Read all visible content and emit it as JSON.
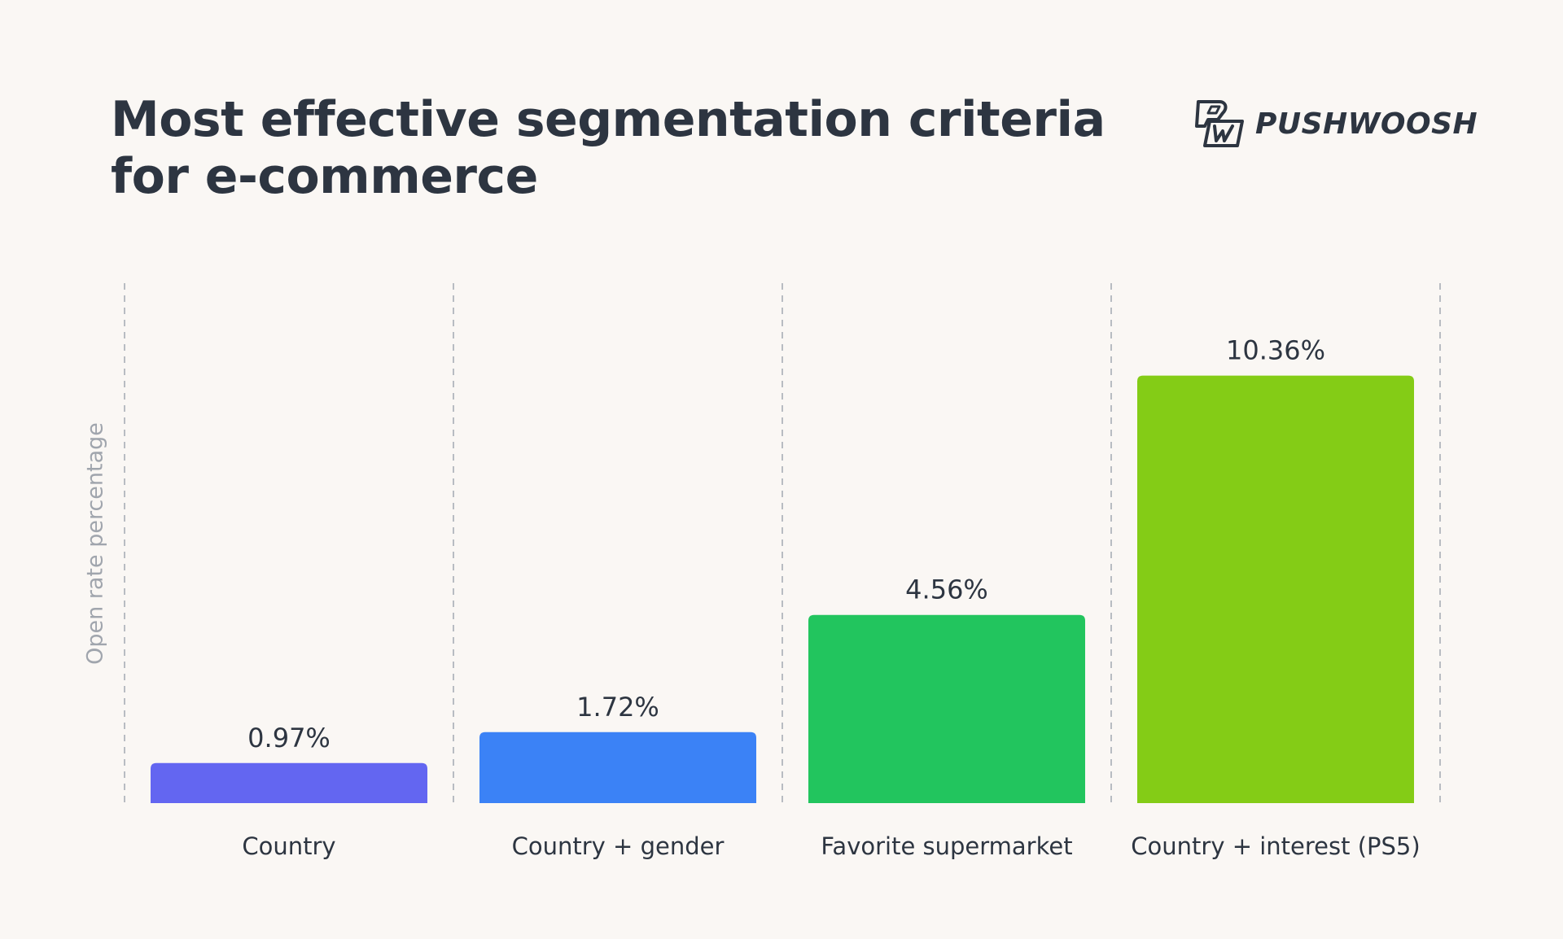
{
  "chart_data": {
    "type": "bar",
    "title_lines": [
      "Most effective segmentation criteria",
      "for e-commerce"
    ],
    "ylabel": "Open rate percentage",
    "xlabel": "",
    "categories": [
      "Country",
      "Country + gender",
      "Favorite supermarket",
      "Country + interest (PS5)"
    ],
    "values": [
      0.97,
      1.72,
      4.56,
      10.36
    ],
    "value_labels": [
      "0.97%",
      "1.72%",
      "4.56%",
      "10.36%"
    ],
    "bar_colors": [
      "#6366f1",
      "#3b82f6",
      "#22c55e",
      "#84cc16"
    ],
    "ylim": [
      0,
      12.6
    ],
    "grid": "vertical dashed separators",
    "legend": "none"
  },
  "brand": {
    "name": "PUSHWOOSH",
    "logo_icon": "pushwoosh-pw-icon"
  },
  "colors": {
    "background": "#faf7f4",
    "text": "#2d3541",
    "muted": "#a0a5ad",
    "separator": "#b8bcc2"
  }
}
